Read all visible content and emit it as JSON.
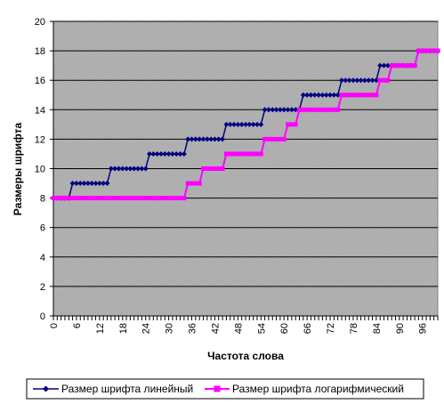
{
  "chart_data": {
    "type": "line",
    "xlabel": "Частота слова",
    "ylabel": "Размеры шрифта",
    "xlim": [
      0,
      100
    ],
    "ylim": [
      0,
      20
    ],
    "yticks": [
      0,
      2,
      4,
      6,
      8,
      10,
      12,
      14,
      16,
      18,
      20
    ],
    "xticks": [
      0,
      6,
      12,
      18,
      24,
      30,
      36,
      42,
      48,
      54,
      60,
      66,
      72,
      78,
      84,
      90,
      96
    ],
    "grid": true,
    "legend": "bottom",
    "x": [
      0,
      1,
      2,
      3,
      4,
      5,
      6,
      7,
      8,
      9,
      10,
      11,
      12,
      13,
      14,
      15,
      16,
      17,
      18,
      19,
      20,
      21,
      22,
      23,
      24,
      25,
      26,
      27,
      28,
      29,
      30,
      31,
      32,
      33,
      34,
      35,
      36,
      37,
      38,
      39,
      40,
      41,
      42,
      43,
      44,
      45,
      46,
      47,
      48,
      49,
      50,
      51,
      52,
      53,
      54,
      55,
      56,
      57,
      58,
      59,
      60,
      61,
      62,
      63,
      64,
      65,
      66,
      67,
      68,
      69,
      70,
      71,
      72,
      73,
      74,
      75,
      76,
      77,
      78,
      79,
      80,
      81,
      82,
      83,
      84,
      85,
      86,
      87,
      88,
      89,
      90,
      91,
      92,
      93,
      94,
      95,
      96,
      97,
      98,
      99,
      100
    ],
    "series": [
      {
        "name": "Размер шрифта линейный",
        "color": "#000080",
        "marker": "diamond",
        "values": [
          8,
          8,
          8,
          8,
          8,
          9,
          9,
          9,
          9,
          9,
          9,
          9,
          9,
          9,
          9,
          10,
          10,
          10,
          10,
          10,
          10,
          10,
          10,
          10,
          10,
          11,
          11,
          11,
          11,
          11,
          11,
          11,
          11,
          11,
          11,
          12,
          12,
          12,
          12,
          12,
          12,
          12,
          12,
          12,
          12,
          13,
          13,
          13,
          13,
          13,
          13,
          13,
          13,
          13,
          13,
          14,
          14,
          14,
          14,
          14,
          14,
          14,
          14,
          14,
          14,
          15,
          15,
          15,
          15,
          15,
          15,
          15,
          15,
          15,
          15,
          16,
          16,
          16,
          16,
          16,
          16,
          16,
          16,
          16,
          16,
          17,
          17,
          17,
          17,
          17,
          17,
          17,
          17,
          17,
          17,
          18,
          18,
          18,
          18,
          18,
          18
        ]
      },
      {
        "name": "Размер шрифта логарифмический",
        "color": "#FF00FF",
        "marker": "square",
        "values": [
          8,
          8,
          8,
          8,
          8,
          8,
          8,
          8,
          8,
          8,
          8,
          8,
          8,
          8,
          8,
          8,
          8,
          8,
          8,
          8,
          8,
          8,
          8,
          8,
          8,
          8,
          8,
          8,
          8,
          8,
          8,
          8,
          8,
          8,
          8,
          9,
          9,
          9,
          9,
          10,
          10,
          10,
          10,
          10,
          10,
          11,
          11,
          11,
          11,
          11,
          11,
          11,
          11,
          11,
          11,
          12,
          12,
          12,
          12,
          12,
          12,
          13,
          13,
          13,
          14,
          14,
          14,
          14,
          14,
          14,
          14,
          14,
          14,
          14,
          14,
          15,
          15,
          15,
          15,
          15,
          15,
          15,
          15,
          15,
          15,
          16,
          16,
          16,
          17,
          17,
          17,
          17,
          17,
          17,
          17,
          18,
          18,
          18,
          18,
          18,
          18
        ]
      }
    ]
  }
}
